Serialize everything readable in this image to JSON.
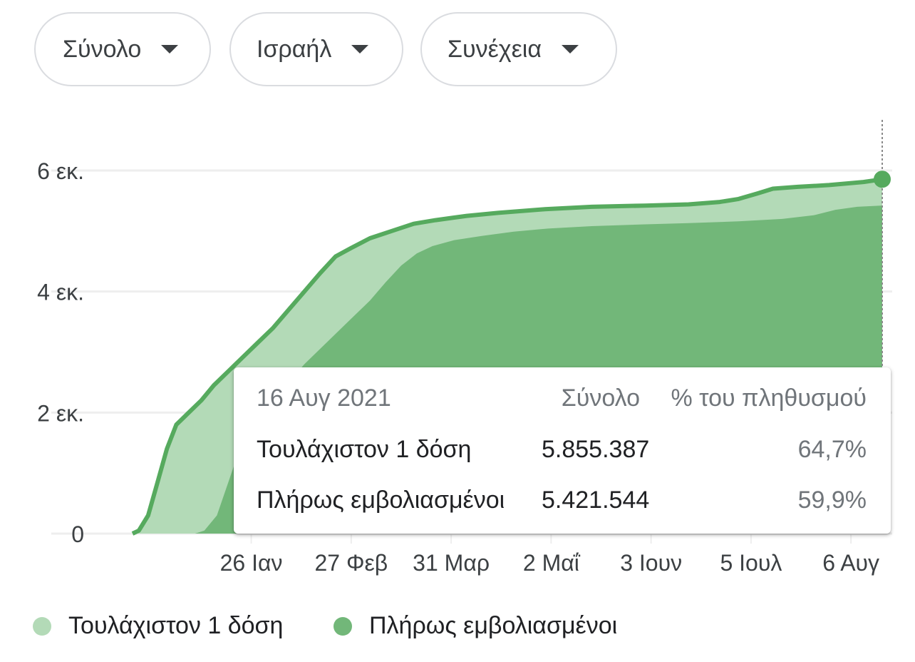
{
  "filters": [
    {
      "label": "Σύνολο"
    },
    {
      "label": "Ισραήλ"
    },
    {
      "label": "Συνέχεια"
    }
  ],
  "colors": {
    "at_least_one_fill": "#b3dab7",
    "at_least_one_line": "#56aa5e",
    "fully_fill": "#72b779",
    "grid": "#eeeeee",
    "axis_text": "#3c4043"
  },
  "tooltip": {
    "date": "16 Αυγ 2021",
    "col_total": "Σύνολο",
    "col_pct": "% του πληθυσμού",
    "rows": [
      {
        "label": "Τουλάχιστον 1 δόση",
        "total": "5.855.387",
        "pct": "64,7%"
      },
      {
        "label": "Πλήρως εμβολιασμένοι",
        "total": "5.421.544",
        "pct": "59,9%"
      }
    ]
  },
  "legend": [
    {
      "label": "Τουλάχιστον 1 δόση",
      "color": "#b3dab7"
    },
    {
      "label": "Πλήρως εμβολιασμένοι",
      "color": "#72b779"
    }
  ],
  "chart_data": {
    "type": "area",
    "x_unit": "date",
    "xlim": [
      "2020-12-19",
      "2021-08-16"
    ],
    "ylim": [
      0,
      6000000
    ],
    "ytick_values": [
      0,
      2000000,
      4000000,
      6000000
    ],
    "ytick_labels": [
      "0",
      "2 εκ.",
      "4 εκ.",
      "6 εκ."
    ],
    "xticks": [
      {
        "date": "2021-01-26",
        "label": "26 Ιαν"
      },
      {
        "date": "2021-02-27",
        "label": "27 Φεβ"
      },
      {
        "date": "2021-03-31",
        "label": "31 Μαρ"
      },
      {
        "date": "2021-05-02",
        "label": "2 Μαΐ"
      },
      {
        "date": "2021-06-03",
        "label": "3 Ιουν"
      },
      {
        "date": "2021-07-05",
        "label": "5 Ιουλ"
      },
      {
        "date": "2021-08-06",
        "label": "6 Αυγ"
      }
    ],
    "grid": true,
    "legend_position": "bottom",
    "series": [
      {
        "name": "Τουλάχιστον 1 δόση",
        "points": [
          [
            "2020-12-19",
            0
          ],
          [
            "2020-12-21",
            50000
          ],
          [
            "2020-12-24",
            300000
          ],
          [
            "2020-12-27",
            850000
          ],
          [
            "2020-12-30",
            1400000
          ],
          [
            "2021-01-02",
            1800000
          ],
          [
            "2021-01-06",
            2000000
          ],
          [
            "2021-01-10",
            2200000
          ],
          [
            "2021-01-14",
            2450000
          ],
          [
            "2021-01-19",
            2700000
          ],
          [
            "2021-01-23",
            2900000
          ],
          [
            "2021-01-28",
            3150000
          ],
          [
            "2021-02-02",
            3400000
          ],
          [
            "2021-02-07",
            3700000
          ],
          [
            "2021-02-12",
            4000000
          ],
          [
            "2021-02-17",
            4300000
          ],
          [
            "2021-02-22",
            4580000
          ],
          [
            "2021-02-27",
            4720000
          ],
          [
            "2021-03-05",
            4880000
          ],
          [
            "2021-03-12",
            5000000
          ],
          [
            "2021-03-19",
            5120000
          ],
          [
            "2021-03-26",
            5180000
          ],
          [
            "2021-04-05",
            5250000
          ],
          [
            "2021-04-15",
            5300000
          ],
          [
            "2021-04-30",
            5360000
          ],
          [
            "2021-05-15",
            5400000
          ],
          [
            "2021-06-01",
            5420000
          ],
          [
            "2021-06-15",
            5440000
          ],
          [
            "2021-06-25",
            5480000
          ],
          [
            "2021-07-01",
            5530000
          ],
          [
            "2021-07-07",
            5620000
          ],
          [
            "2021-07-12",
            5700000
          ],
          [
            "2021-07-20",
            5730000
          ],
          [
            "2021-07-30",
            5760000
          ],
          [
            "2021-08-10",
            5810000
          ],
          [
            "2021-08-16",
            5855387
          ]
        ]
      },
      {
        "name": "Πλήρως εμβολιασμένοι",
        "points": [
          [
            "2020-12-19",
            0
          ],
          [
            "2021-01-08",
            0
          ],
          [
            "2021-01-11",
            50000
          ],
          [
            "2021-01-15",
            300000
          ],
          [
            "2021-01-19",
            900000
          ],
          [
            "2021-01-23",
            1500000
          ],
          [
            "2021-01-28",
            1900000
          ],
          [
            "2021-02-02",
            2200000
          ],
          [
            "2021-02-07",
            2500000
          ],
          [
            "2021-02-12",
            2800000
          ],
          [
            "2021-02-17",
            3050000
          ],
          [
            "2021-02-22",
            3300000
          ],
          [
            "2021-02-27",
            3550000
          ],
          [
            "2021-03-05",
            3850000
          ],
          [
            "2021-03-10",
            4150000
          ],
          [
            "2021-03-15",
            4430000
          ],
          [
            "2021-03-20",
            4630000
          ],
          [
            "2021-03-25",
            4750000
          ],
          [
            "2021-04-01",
            4850000
          ],
          [
            "2021-04-10",
            4920000
          ],
          [
            "2021-04-20",
            4990000
          ],
          [
            "2021-05-01",
            5040000
          ],
          [
            "2021-05-15",
            5080000
          ],
          [
            "2021-06-01",
            5110000
          ],
          [
            "2021-06-15",
            5130000
          ],
          [
            "2021-07-01",
            5160000
          ],
          [
            "2021-07-15",
            5200000
          ],
          [
            "2021-07-25",
            5260000
          ],
          [
            "2021-08-01",
            5350000
          ],
          [
            "2021-08-08",
            5400000
          ],
          [
            "2021-08-16",
            5421544
          ]
        ]
      }
    ]
  }
}
